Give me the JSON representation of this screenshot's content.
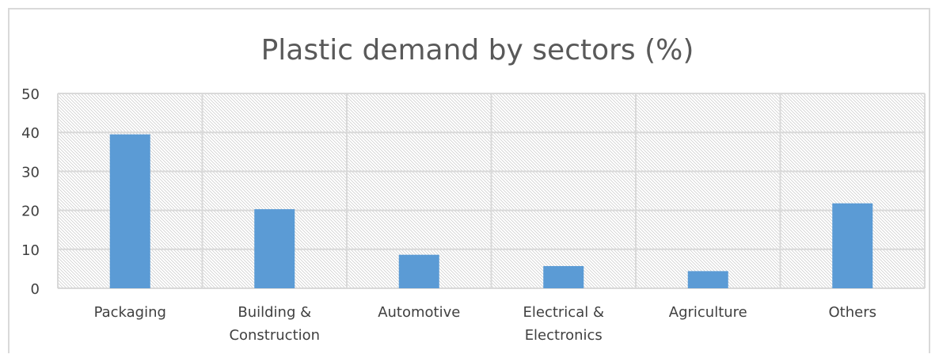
{
  "chart_data": {
    "type": "bar",
    "title": "Plastic demand by sectors (%)",
    "categories": [
      [
        "Packaging"
      ],
      [
        "Building &",
        "Construction"
      ],
      [
        "Automotive"
      ],
      [
        "Electrical &",
        "Electronics"
      ],
      [
        "Agriculture"
      ],
      [
        "Others"
      ]
    ],
    "values": [
      39.5,
      20.3,
      8.6,
      5.7,
      4.4,
      21.8
    ],
    "ylim": [
      0,
      50
    ],
    "yticks": [
      "0",
      "10",
      "20",
      "30",
      "40",
      "50"
    ],
    "xlabel": "",
    "ylabel": "",
    "grid": true,
    "legend": "none",
    "colors": {
      "bar": "#5b9bd5",
      "grid": "#d9d9d9",
      "hatch": "#c8c8c8"
    }
  }
}
